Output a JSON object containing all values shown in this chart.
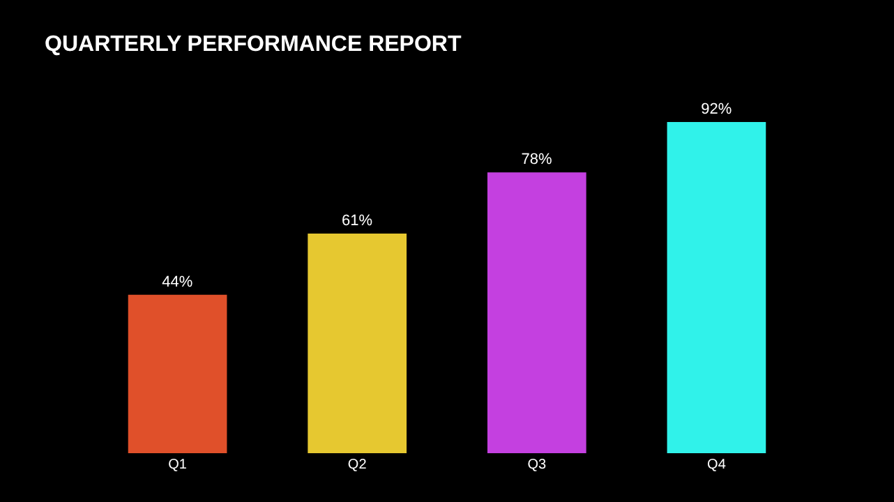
{
  "chart_data": {
    "type": "bar",
    "title": "QUARTERLY PERFORMANCE REPORT",
    "categories": [
      "Q1",
      "Q2",
      "Q3",
      "Q4"
    ],
    "values": [
      44,
      61,
      78,
      92
    ],
    "colors": [
      "#e0502a",
      "#e6c830",
      "#c440e0",
      "#30f2ea"
    ],
    "value_labels": [
      "44%",
      "61%",
      "78%",
      "92%"
    ],
    "grid": false,
    "legend": false
  }
}
